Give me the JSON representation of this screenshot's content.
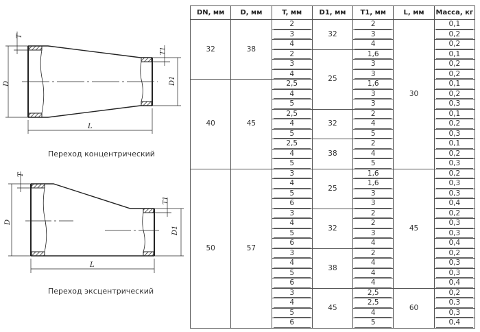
{
  "captions": {
    "concentric": "Переход концентрический",
    "eccentric": "Переход эксцентрический"
  },
  "dimension_labels": {
    "T": "T",
    "T1": "T1",
    "D": "D",
    "D1": "D1",
    "L": "L"
  },
  "table": {
    "headers": [
      "DN, мм",
      "D, мм",
      "T, мм",
      "D1, мм",
      "T1, мм",
      "L, мм",
      "Масса, кг"
    ],
    "dn_groups": [
      {
        "dn": "32",
        "d": "38",
        "span": 6
      },
      {
        "dn": "40",
        "d": "45",
        "span": 9
      },
      {
        "dn": "50",
        "d": "57",
        "span": 16
      }
    ],
    "d1_groups": [
      {
        "d1": "32",
        "span": 3
      },
      {
        "d1": "25",
        "span": 6
      },
      {
        "d1": "32",
        "span": 3
      },
      {
        "d1": "38",
        "span": 3
      },
      {
        "d1": "25",
        "span": 4
      },
      {
        "d1": "32",
        "span": 4
      },
      {
        "d1": "38",
        "span": 4
      },
      {
        "d1": "45",
        "span": 4
      }
    ],
    "l_groups": [
      {
        "l": "30",
        "span": 15
      },
      {
        "l": "45",
        "span": 12
      },
      {
        "l": "60",
        "span": 4
      }
    ],
    "rows": [
      {
        "t": "2",
        "t1": "2",
        "mass": "0,1"
      },
      {
        "t": "3",
        "t1": "3",
        "mass": "0,2"
      },
      {
        "t": "4",
        "t1": "4",
        "mass": "0,2"
      },
      {
        "t": "2",
        "t1": "1,6",
        "mass": "0,1"
      },
      {
        "t": "3",
        "t1": "3",
        "mass": "0,2"
      },
      {
        "t": "4",
        "t1": "3",
        "mass": "0,2"
      },
      {
        "t": "2,5",
        "t1": "1,6",
        "mass": "0,1"
      },
      {
        "t": "4",
        "t1": "3",
        "mass": "0,2"
      },
      {
        "t": "5",
        "t1": "3",
        "mass": "0,3"
      },
      {
        "t": "2,5",
        "t1": "2",
        "mass": "0,1"
      },
      {
        "t": "4",
        "t1": "4",
        "mass": "0,2"
      },
      {
        "t": "5",
        "t1": "5",
        "mass": "0,3"
      },
      {
        "t": "2,5",
        "t1": "2",
        "mass": "0,1"
      },
      {
        "t": "4",
        "t1": "4",
        "mass": "0,2"
      },
      {
        "t": "5",
        "t1": "5",
        "mass": "0,3"
      },
      {
        "t": "3",
        "t1": "1,6",
        "mass": "0,2"
      },
      {
        "t": "4",
        "t1": "1,6",
        "mass": "0,3"
      },
      {
        "t": "5",
        "t1": "3",
        "mass": "0,3"
      },
      {
        "t": "6",
        "t1": "3",
        "mass": "0,4"
      },
      {
        "t": "3",
        "t1": "2",
        "mass": "0,2"
      },
      {
        "t": "4",
        "t1": "2",
        "mass": "0,3"
      },
      {
        "t": "5",
        "t1": "3",
        "mass": "0,3"
      },
      {
        "t": "6",
        "t1": "4",
        "mass": "0,4"
      },
      {
        "t": "3",
        "t1": "2",
        "mass": "0,2"
      },
      {
        "t": "4",
        "t1": "4",
        "mass": "0,3"
      },
      {
        "t": "5",
        "t1": "4",
        "mass": "0,3"
      },
      {
        "t": "6",
        "t1": "4",
        "mass": "0,4"
      },
      {
        "t": "3",
        "t1": "2,5",
        "mass": "0,2"
      },
      {
        "t": "4",
        "t1": "2,5",
        "mass": "0,3"
      },
      {
        "t": "5",
        "t1": "4",
        "mass": "0,3"
      },
      {
        "t": "6",
        "t1": "5",
        "mass": "0,4"
      }
    ]
  }
}
